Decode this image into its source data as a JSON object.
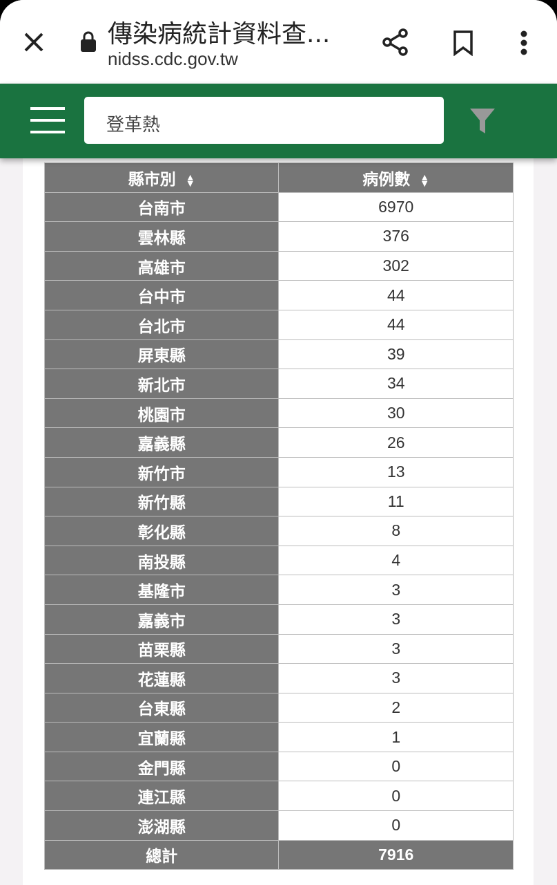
{
  "browser": {
    "title": "傳染病統計資料查...",
    "url": "nidss.cdc.gov.tw"
  },
  "search": {
    "value": "登革熱"
  },
  "colors": {
    "brand": "#1a7340",
    "header_cell": "#767676"
  },
  "table": {
    "headers": [
      "縣市別",
      "病例數"
    ],
    "rows": [
      [
        "台南市",
        "6970"
      ],
      [
        "雲林縣",
        "376"
      ],
      [
        "高雄市",
        "302"
      ],
      [
        "台中市",
        "44"
      ],
      [
        "台北市",
        "44"
      ],
      [
        "屏東縣",
        "39"
      ],
      [
        "新北市",
        "34"
      ],
      [
        "桃園市",
        "30"
      ],
      [
        "嘉義縣",
        "26"
      ],
      [
        "新竹市",
        "13"
      ],
      [
        "新竹縣",
        "11"
      ],
      [
        "彰化縣",
        "8"
      ],
      [
        "南投縣",
        "4"
      ],
      [
        "基隆市",
        "3"
      ],
      [
        "嘉義市",
        "3"
      ],
      [
        "苗栗縣",
        "3"
      ],
      [
        "花蓮縣",
        "3"
      ],
      [
        "台東縣",
        "2"
      ],
      [
        "宜蘭縣",
        "1"
      ],
      [
        "金門縣",
        "0"
      ],
      [
        "連江縣",
        "0"
      ],
      [
        "澎湖縣",
        "0"
      ]
    ],
    "total": [
      "總計",
      "7916"
    ]
  }
}
